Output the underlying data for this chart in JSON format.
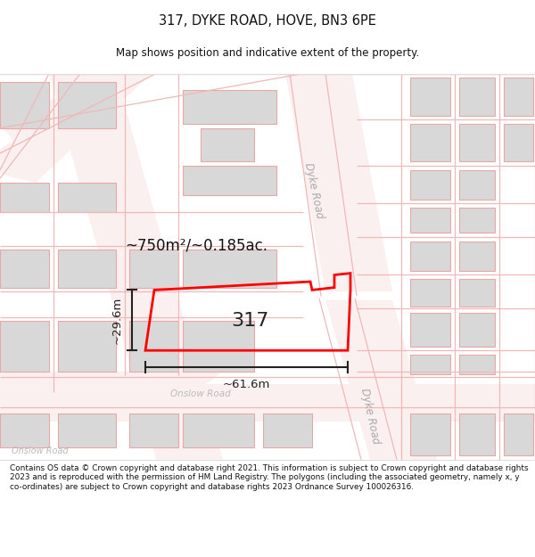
{
  "title": "317, DYKE ROAD, HOVE, BN3 6PE",
  "subtitle": "Map shows position and indicative extent of the property.",
  "area_text": "~750m²/~0.185ac.",
  "label_317": "317",
  "dim_width": "~61.6m",
  "dim_height": "~29.6m",
  "road_label_upper": "Dyke Road",
  "road_label_lower": "Dyke Road",
  "road_label_onslow": "Onslow Road",
  "road_label_onslow2": "Onslow Road",
  "copyright_text": "Contains OS data © Crown copyright and database right 2021. This information is subject to Crown copyright and database rights 2023 and is reproduced with the permission of HM Land Registry. The polygons (including the associated geometry, namely x, y co-ordinates) are subject to Crown copyright and database rights 2023 Ordnance Survey 100026316.",
  "road_color": "#f0b8b8",
  "road_fill": "#faf0f0",
  "building_fill": "#d8d8d8",
  "building_edge": "#e8a8a8",
  "plot_color": "#ff0000",
  "dim_color": "#222222",
  "text_color": "#333333",
  "title_color": "#111111",
  "map_bg": "#ffffff"
}
